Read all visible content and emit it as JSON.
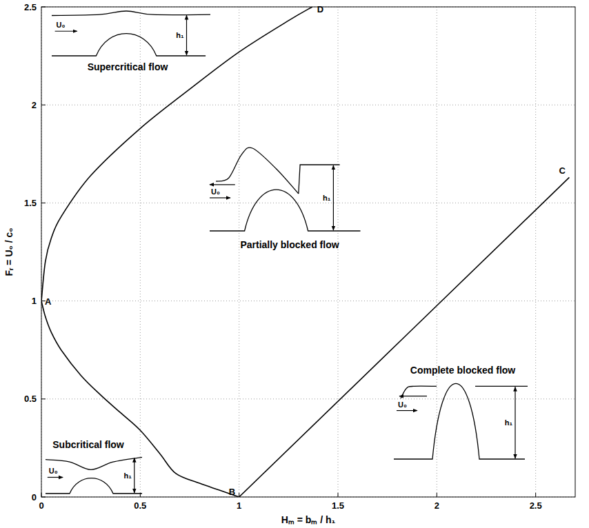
{
  "chart_data": {
    "type": "line",
    "xlabel": "Hₘ = bₘ / h₁",
    "ylabel": "Fᵣ = U₀ / c₀",
    "xlim": [
      0,
      2.7
    ],
    "ylim": [
      0,
      2.5
    ],
    "xticks": [
      0,
      0.5,
      1,
      1.5,
      2,
      2.5
    ],
    "yticks": [
      0,
      0.5,
      1,
      1.5,
      2,
      2.5
    ],
    "grid": true,
    "series": [
      {
        "color": "#000000",
        "x": [
          0,
          0.02,
          0.05,
          0.1,
          0.2,
          0.3,
          0.4,
          0.5,
          0.6,
          0.68,
          0.8,
          0.9,
          1
        ],
        "values": [
          1,
          0.92,
          0.84,
          0.75,
          0.62,
          0.52,
          0.43,
          0.34,
          0.22,
          0.12,
          0.07,
          0.035,
          0
        ]
      },
      {
        "color": "#000000",
        "x": [
          0,
          0.02,
          0.05,
          0.1,
          0.25,
          0.5,
          0.75,
          1,
          1.25,
          1.37
        ],
        "values": [
          1,
          1.2,
          1.32,
          1.43,
          1.64,
          1.88,
          2.08,
          2.27,
          2.43,
          2.5
        ]
      },
      {
        "color": "#000000",
        "x": [
          1,
          2.67
        ],
        "values": [
          0,
          1.63
        ]
      }
    ],
    "point_labels": [
      {
        "text": "A",
        "x": 0,
        "y": 1
      },
      {
        "text": "B",
        "x": 1,
        "y": 0
      },
      {
        "text": "C",
        "x": 2.67,
        "y": 1.63
      },
      {
        "text": "D",
        "x": 1.37,
        "y": 2.5
      }
    ],
    "regions": [
      {
        "label": "Supercritical flow",
        "sketch_labels": [
          "U₀",
          "h₁"
        ]
      },
      {
        "label": "Partially blocked flow",
        "sketch_labels": [
          "U₀",
          "h₁"
        ]
      },
      {
        "label": "Complete blocked flow",
        "sketch_labels": [
          "U₀",
          "h₁"
        ]
      },
      {
        "label": "Subcritical flow",
        "sketch_labels": [
          "U₀",
          "h₁"
        ]
      }
    ]
  }
}
